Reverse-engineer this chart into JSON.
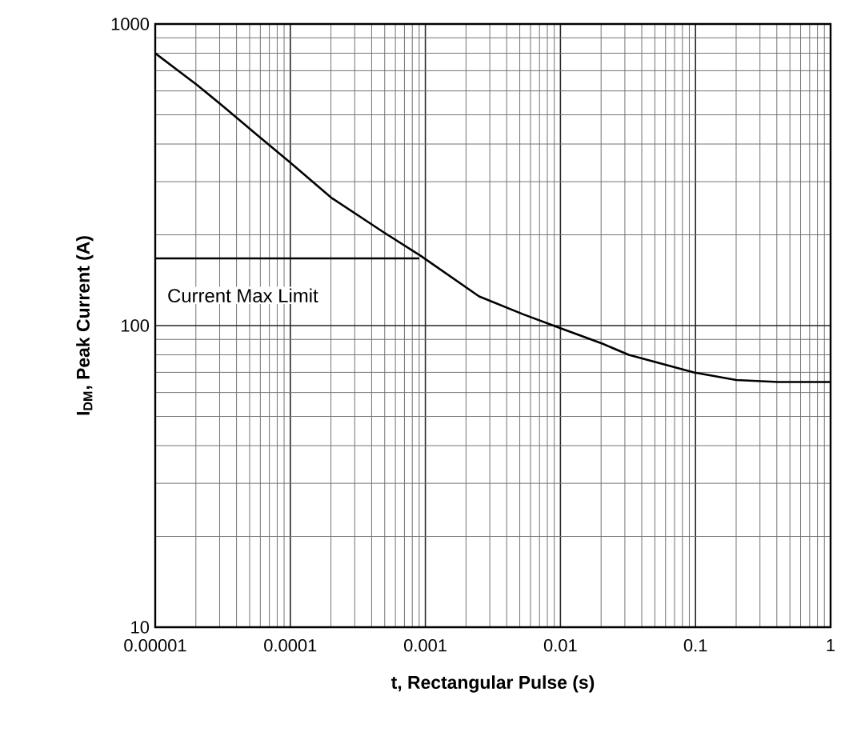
{
  "chart_data": {
    "type": "line",
    "xlabel": "t, Rectangular Pulse (s)",
    "ylabel": "I$_{DM}$, Peak Current (A)",
    "log": "xy",
    "grid": true,
    "xlim": [
      1e-05,
      1
    ],
    "ylim": [
      10,
      1000
    ],
    "xticks": [
      {
        "value": 1e-05,
        "label": "0.00001"
      },
      {
        "value": 0.0001,
        "label": "0.0001"
      },
      {
        "value": 0.001,
        "label": "0.001"
      },
      {
        "value": 0.01,
        "label": "0.01"
      },
      {
        "value": 0.1,
        "label": "0.1"
      },
      {
        "value": 1,
        "label": "1"
      }
    ],
    "yticks": [
      10,
      100,
      1000
    ],
    "series": [
      {
        "color": "#000000",
        "x": [
          1e-05,
          2.05e-05,
          3.2e-05,
          5.8e-05,
          0.0001,
          0.0002,
          0.00049,
          0.00093,
          0.0025,
          0.0053,
          0.01,
          0.0206,
          0.032,
          0.097,
          0.2,
          0.41,
          1
        ],
        "values": [
          800,
          627,
          532,
          425,
          347,
          266,
          204,
          170,
          125,
          109,
          98,
          87,
          80,
          70,
          66,
          65,
          65
        ]
      },
      {
        "color": "#000000",
        "x": [
          1e-05,
          0.0009
        ],
        "values": [
          167,
          167
        ]
      }
    ],
    "annotations": [
      "Current Max Limit"
    ]
  }
}
